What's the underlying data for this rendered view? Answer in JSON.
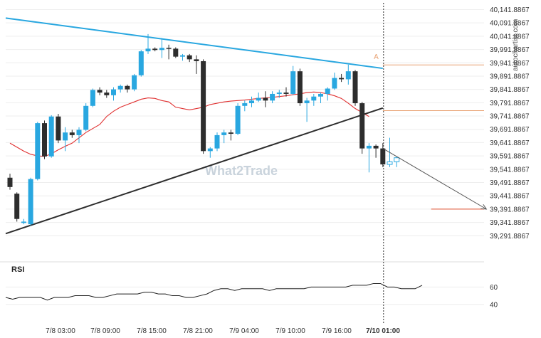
{
  "watermark": "What2Trade",
  "site_label": "autochartist.com",
  "rsi_label": "RSI",
  "chart_data": {
    "type": "candlestick",
    "y_ticks": [
      "40,141.8867",
      "40,091.8867",
      "40,041.8867",
      "39,991.8867",
      "39,941.8867",
      "39,891.8867",
      "39,841.8867",
      "39,791.8867",
      "39,741.8867",
      "39,691.8867",
      "39,641.8867",
      "39,591.8867",
      "39,541.8867",
      "39,491.8867",
      "39,441.8867",
      "39,391.8867",
      "39,341.8867",
      "39,291.8867"
    ],
    "y_tick_values": [
      40141.8867,
      40091.8867,
      40041.8867,
      39991.8867,
      39941.8867,
      39891.8867,
      39841.8867,
      39791.8867,
      39741.8867,
      39691.8867,
      39641.8867,
      39591.8867,
      39541.8867,
      39491.8867,
      39441.8867,
      39391.8867,
      39341.8867,
      39291.8867
    ],
    "ylim": [
      39241.8867,
      40161.8867
    ],
    "x_ticks": [
      "7/8 03:00",
      "7/8 09:00",
      "7/8 15:00",
      "7/8 21:00",
      "7/9 04:00",
      "7/9 10:00",
      "7/9 16:00",
      "7/10 01:00"
    ],
    "candles": [
      {
        "o": 39510,
        "h": 39525,
        "l": 39465,
        "c": 39475
      },
      {
        "o": 39450,
        "h": 39455,
        "l": 39345,
        "c": 39355
      },
      {
        "o": 39340,
        "h": 39355,
        "l": 39335,
        "c": 39345
      },
      {
        "o": 39335,
        "h": 39510,
        "l": 39330,
        "c": 39505
      },
      {
        "o": 39505,
        "h": 39720,
        "l": 39500,
        "c": 39715
      },
      {
        "o": 39715,
        "h": 39725,
        "l": 39580,
        "c": 39590
      },
      {
        "o": 39590,
        "h": 39745,
        "l": 39585,
        "c": 39740
      },
      {
        "o": 39740,
        "h": 39750,
        "l": 39640,
        "c": 39650
      },
      {
        "o": 39650,
        "h": 39700,
        "l": 39610,
        "c": 39680
      },
      {
        "o": 39680,
        "h": 39690,
        "l": 39660,
        "c": 39670
      },
      {
        "o": 39670,
        "h": 39700,
        "l": 39640,
        "c": 39690
      },
      {
        "o": 39690,
        "h": 39790,
        "l": 39685,
        "c": 39780
      },
      {
        "o": 39780,
        "h": 39845,
        "l": 39775,
        "c": 39840
      },
      {
        "o": 39840,
        "h": 39850,
        "l": 39820,
        "c": 39830
      },
      {
        "o": 39830,
        "h": 39840,
        "l": 39810,
        "c": 39820
      },
      {
        "o": 39820,
        "h": 39850,
        "l": 39800,
        "c": 39842
      },
      {
        "o": 39842,
        "h": 39860,
        "l": 39830,
        "c": 39855
      },
      {
        "o": 39855,
        "h": 39860,
        "l": 39830,
        "c": 39842
      },
      {
        "o": 39842,
        "h": 39900,
        "l": 39835,
        "c": 39895
      },
      {
        "o": 39895,
        "h": 39990,
        "l": 39890,
        "c": 39985
      },
      {
        "o": 39985,
        "h": 40050,
        "l": 39975,
        "c": 39995
      },
      {
        "o": 39995,
        "h": 40000,
        "l": 39985,
        "c": 39990
      },
      {
        "o": 39990,
        "h": 40035,
        "l": 39960,
        "c": 39998
      },
      {
        "o": 39998,
        "h": 40010,
        "l": 39955,
        "c": 39995
      },
      {
        "o": 39995,
        "h": 40000,
        "l": 39960,
        "c": 39965
      },
      {
        "o": 39965,
        "h": 39975,
        "l": 39950,
        "c": 39970
      },
      {
        "o": 39970,
        "h": 39975,
        "l": 39945,
        "c": 39955
      },
      {
        "o": 39955,
        "h": 39970,
        "l": 39900,
        "c": 39948
      },
      {
        "o": 39948,
        "h": 39955,
        "l": 39600,
        "c": 39610
      },
      {
        "o": 39610,
        "h": 39625,
        "l": 39585,
        "c": 39620
      },
      {
        "o": 39620,
        "h": 39680,
        "l": 39610,
        "c": 39670
      },
      {
        "o": 39670,
        "h": 39690,
        "l": 39640,
        "c": 39680
      },
      {
        "o": 39680,
        "h": 39690,
        "l": 39650,
        "c": 39675
      },
      {
        "o": 39675,
        "h": 39790,
        "l": 39670,
        "c": 39780
      },
      {
        "o": 39780,
        "h": 39800,
        "l": 39760,
        "c": 39790
      },
      {
        "o": 39790,
        "h": 39815,
        "l": 39775,
        "c": 39800
      },
      {
        "o": 39800,
        "h": 39830,
        "l": 39795,
        "c": 39810
      },
      {
        "o": 39810,
        "h": 39835,
        "l": 39775,
        "c": 39800
      },
      {
        "o": 39800,
        "h": 39835,
        "l": 39790,
        "c": 39825
      },
      {
        "o": 39825,
        "h": 39840,
        "l": 39810,
        "c": 39830
      },
      {
        "o": 39830,
        "h": 39850,
        "l": 39815,
        "c": 39825
      },
      {
        "o": 39825,
        "h": 39930,
        "l": 39820,
        "c": 39910
      },
      {
        "o": 39910,
        "h": 39920,
        "l": 39780,
        "c": 39790
      },
      {
        "o": 39790,
        "h": 39810,
        "l": 39720,
        "c": 39800
      },
      {
        "o": 39800,
        "h": 39825,
        "l": 39780,
        "c": 39815
      },
      {
        "o": 39815,
        "h": 39830,
        "l": 39790,
        "c": 39825
      },
      {
        "o": 39825,
        "h": 39850,
        "l": 39800,
        "c": 39845
      },
      {
        "o": 39845,
        "h": 39905,
        "l": 39840,
        "c": 39885
      },
      {
        "o": 39885,
        "h": 39900,
        "l": 39870,
        "c": 39880
      },
      {
        "o": 39880,
        "h": 39935,
        "l": 39860,
        "c": 39910
      },
      {
        "o": 39910,
        "h": 39915,
        "l": 39780,
        "c": 39790
      },
      {
        "o": 39790,
        "h": 39795,
        "l": 39600,
        "c": 39620
      },
      {
        "o": 39620,
        "h": 39640,
        "l": 39530,
        "c": 39630
      },
      {
        "o": 39630,
        "h": 39635,
        "l": 39585,
        "c": 39620
      },
      {
        "o": 39620,
        "h": 39640,
        "l": 39550,
        "c": 39560
      },
      {
        "o": 39560,
        "h": 39660,
        "l": 39550,
        "c": 39570
      },
      {
        "o": 39570,
        "h": 39590,
        "l": 39550,
        "c": 39585
      }
    ],
    "ma": [
      39640,
      39625,
      39610,
      39598,
      39592,
      39590,
      39600,
      39615,
      39628,
      39640,
      39660,
      39680,
      39695,
      39710,
      39740,
      39760,
      39775,
      39785,
      39795,
      39805,
      39810,
      39808,
      39800,
      39795,
      39775,
      39770,
      39765,
      39770,
      39775,
      39785,
      39790,
      39795,
      39798,
      39800,
      39802,
      39805,
      39808,
      39810,
      39812,
      39815,
      39818,
      39822,
      39825,
      39830,
      39832,
      39830,
      39825,
      39818,
      39808,
      39790,
      39770,
      39755,
      39740
    ],
    "rsi": [
      48,
      46,
      48,
      48,
      48,
      48,
      45,
      48,
      48,
      48,
      50,
      50,
      50,
      48,
      48,
      50,
      52,
      52,
      52,
      52,
      54,
      54,
      52,
      52,
      50,
      50,
      48,
      48,
      50,
      52,
      56,
      58,
      58,
      56,
      58,
      58,
      58,
      58,
      56,
      58,
      58,
      58,
      58,
      58,
      60,
      60,
      60,
      60,
      60,
      60,
      62,
      62,
      62,
      64,
      64,
      60,
      60,
      58,
      58,
      58,
      62
    ],
    "rsi_ticks": [
      60,
      40
    ],
    "rsi_ylim": [
      30,
      75
    ],
    "triangle_upper": [
      [
        0,
        40110
      ],
      [
        54,
        39921
      ]
    ],
    "triangle_lower": [
      [
        0,
        39300
      ],
      [
        54,
        39772
      ]
    ],
    "forecast_arrow": [
      [
        54,
        39620
      ],
      [
        69,
        39392
      ]
    ],
    "levels": [
      {
        "value": 39934,
        "from": 54,
        "to": 75
      },
      {
        "value": 39762,
        "from": 54,
        "to": 75
      },
      {
        "value": 39391.8867,
        "from": 61,
        "to": 75
      }
    ],
    "label_A": "A",
    "label_A_value": 39950,
    "label_A_index": 53,
    "pattern_end_index": 54,
    "colors": {
      "bull": "#29a7e0",
      "bear": "#2d2d2d",
      "trendline_upper": "#29a7e0",
      "trendline_lower": "#2d2d2d",
      "ma": "#e03030",
      "level": "#e8a070",
      "level_target": "#e04b2a",
      "rsi": "#1e1e1e",
      "grid": "#eeeeee"
    }
  }
}
